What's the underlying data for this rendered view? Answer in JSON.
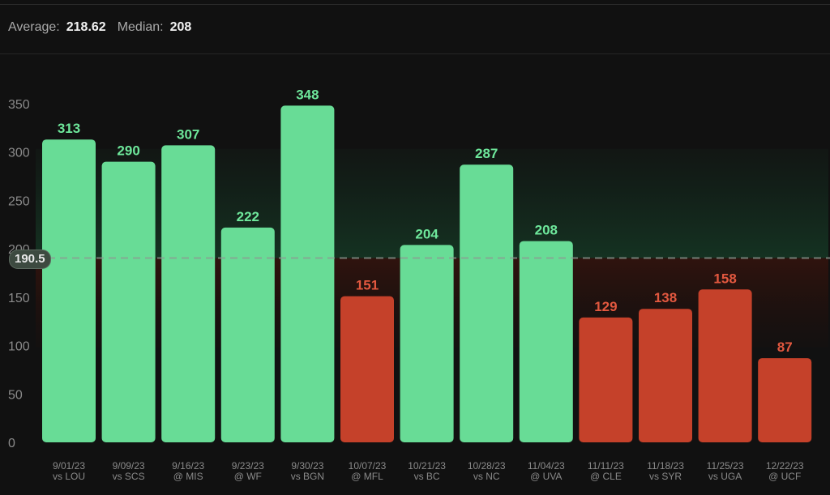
{
  "stats": {
    "average_label": "Average:",
    "average_value": "218.62",
    "median_label": "Median:",
    "median_value": "208"
  },
  "threshold": {
    "value": 190.5,
    "label": "190.5"
  },
  "colors": {
    "above": "#68dc96",
    "below": "#c5412a",
    "above_label": "#6ee79b",
    "below_label": "#e2583f",
    "axis_text": "#8a8a8a"
  },
  "chart_data": {
    "type": "bar",
    "title": "",
    "xlabel": "",
    "ylabel": "",
    "ylim": [
      0,
      350
    ],
    "yticks": [
      0,
      50,
      100,
      150,
      200,
      250,
      300,
      350
    ],
    "threshold": 190.5,
    "grid": false,
    "categories": [
      [
        "9/01/23",
        "vs LOU"
      ],
      [
        "9/09/23",
        "vs SCS"
      ],
      [
        "9/16/23",
        "@ MIS"
      ],
      [
        "9/23/23",
        "@ WF"
      ],
      [
        "9/30/23",
        "vs BGN"
      ],
      [
        "10/07/23",
        "@ MFL"
      ],
      [
        "10/21/23",
        "vs BC"
      ],
      [
        "10/28/23",
        "vs NC"
      ],
      [
        "11/04/23",
        "@ UVA"
      ],
      [
        "11/11/23",
        "@ CLE"
      ],
      [
        "11/18/23",
        "vs SYR"
      ],
      [
        "11/25/23",
        "vs UGA"
      ],
      [
        "12/22/23",
        "@ UCF"
      ]
    ],
    "values": [
      313,
      290,
      307,
      222,
      348,
      151,
      204,
      287,
      208,
      129,
      138,
      158,
      87
    ]
  }
}
